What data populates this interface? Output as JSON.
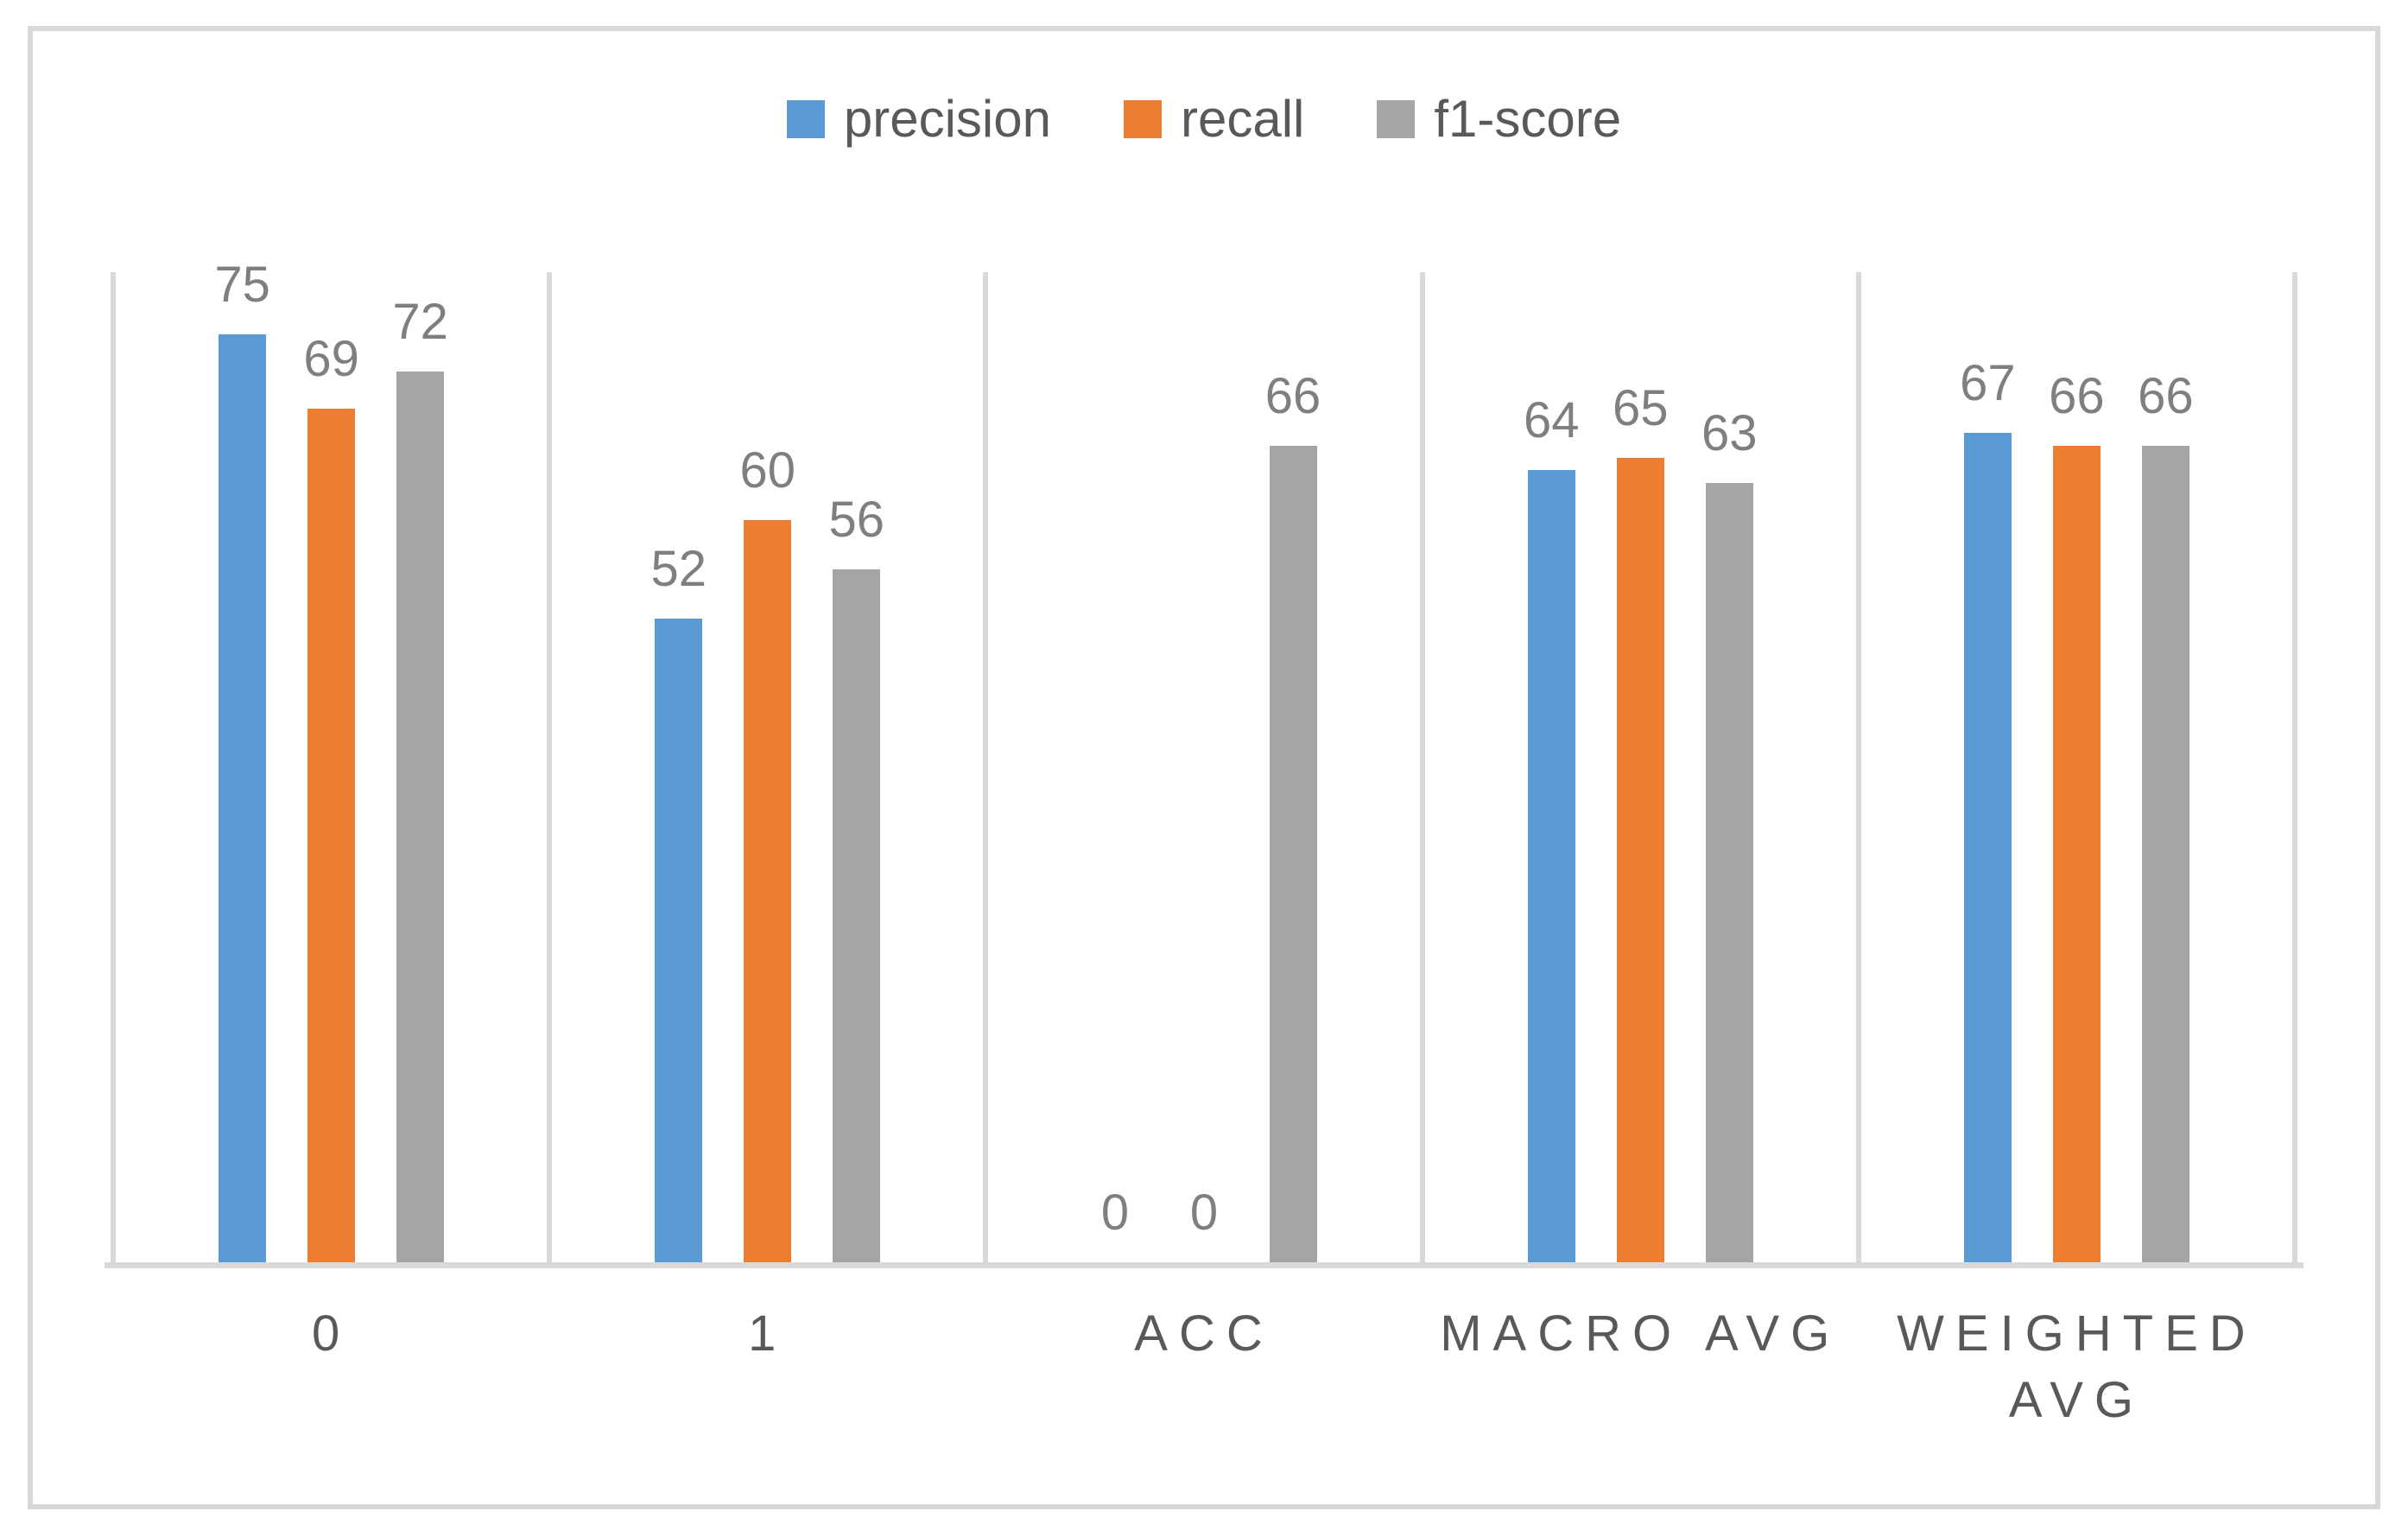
{
  "chart_data": {
    "type": "bar",
    "title": "",
    "xlabel": "",
    "ylabel": "",
    "categories": [
      "0",
      "1",
      "ACC",
      "MACRO AVG",
      "WEIGHTED AVG"
    ],
    "series": [
      {
        "name": "precision",
        "color": "#5B9BD5",
        "values": [
          75,
          52,
          0,
          64,
          67
        ]
      },
      {
        "name": "recall",
        "color": "#ED7D31",
        "values": [
          69,
          60,
          0,
          65,
          66
        ]
      },
      {
        "name": "f1-score",
        "color": "#A5A5A5",
        "values": [
          72,
          56,
          66,
          63,
          66
        ]
      }
    ],
    "ylim": [
      0,
      80
    ],
    "data_labels": true,
    "grid": "vertical category separators only, no horizontal gridlines, no y-axis labels",
    "legend_position": "top-center"
  },
  "colors": {
    "background": "#FFFFFF",
    "frame_border": "#D9D9D9",
    "gridline": "#D9D9D9",
    "axis_line": "#D9D9D9",
    "data_label_text": "#7F7F7F",
    "category_label_text": "#595959",
    "legend_text": "#595959"
  }
}
